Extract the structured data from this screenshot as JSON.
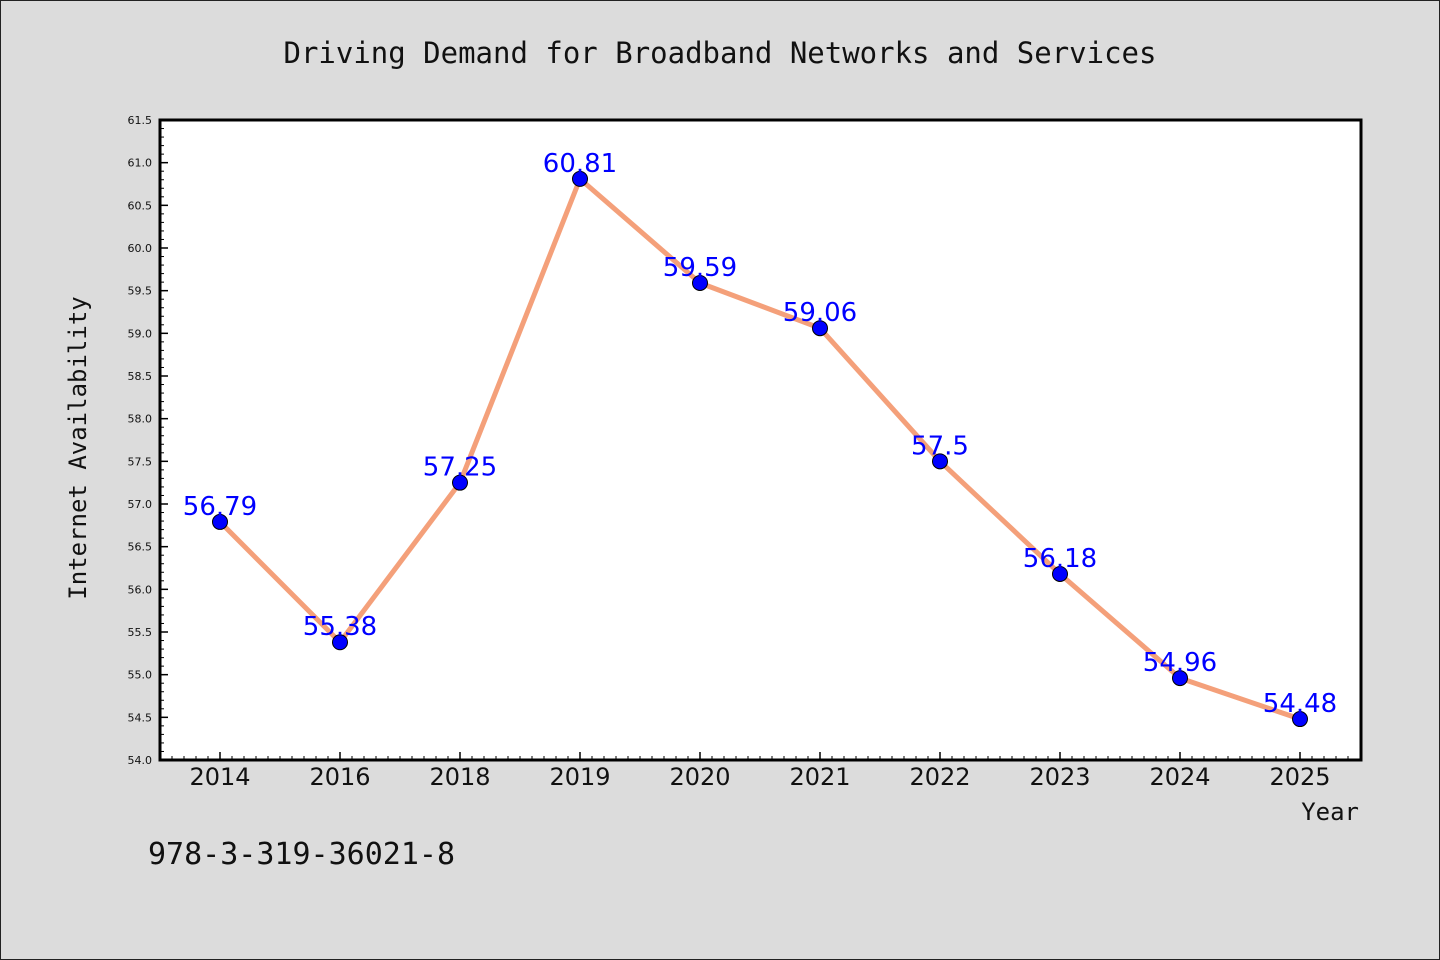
{
  "chart_data": {
    "type": "line",
    "title": "Driving Demand for Broadband Networks and Services",
    "xlabel": "Year",
    "ylabel": "Internet Availability",
    "categories": [
      "2014",
      "2016",
      "2018",
      "2019",
      "2020",
      "2021",
      "2022",
      "2023",
      "2024",
      "2025"
    ],
    "series": [
      {
        "values": [
          56.79,
          55.38,
          57.25,
          60.81,
          59.59,
          59.06,
          57.5,
          56.18,
          54.96,
          54.48
        ],
        "labels": [
          "56.79",
          "55.38",
          "57.25",
          "60.81",
          "59.59",
          "59.06",
          "57.5",
          "56.18",
          "54.96",
          "54.48"
        ]
      }
    ],
    "ylim": [
      54.0,
      61.5
    ],
    "yticks": [
      "54.0",
      "54.5",
      "55.0",
      "55.5",
      "56.0",
      "56.5",
      "57.0",
      "57.5",
      "58.0",
      "58.5",
      "59.0",
      "59.5",
      "60.0",
      "60.5",
      "61.0",
      "61.5"
    ],
    "grid": false,
    "line_color": "#f4a07a",
    "marker_color": "#0000ff",
    "label_color": "#0000ff"
  },
  "footnote": "978-3-319-36021-8"
}
